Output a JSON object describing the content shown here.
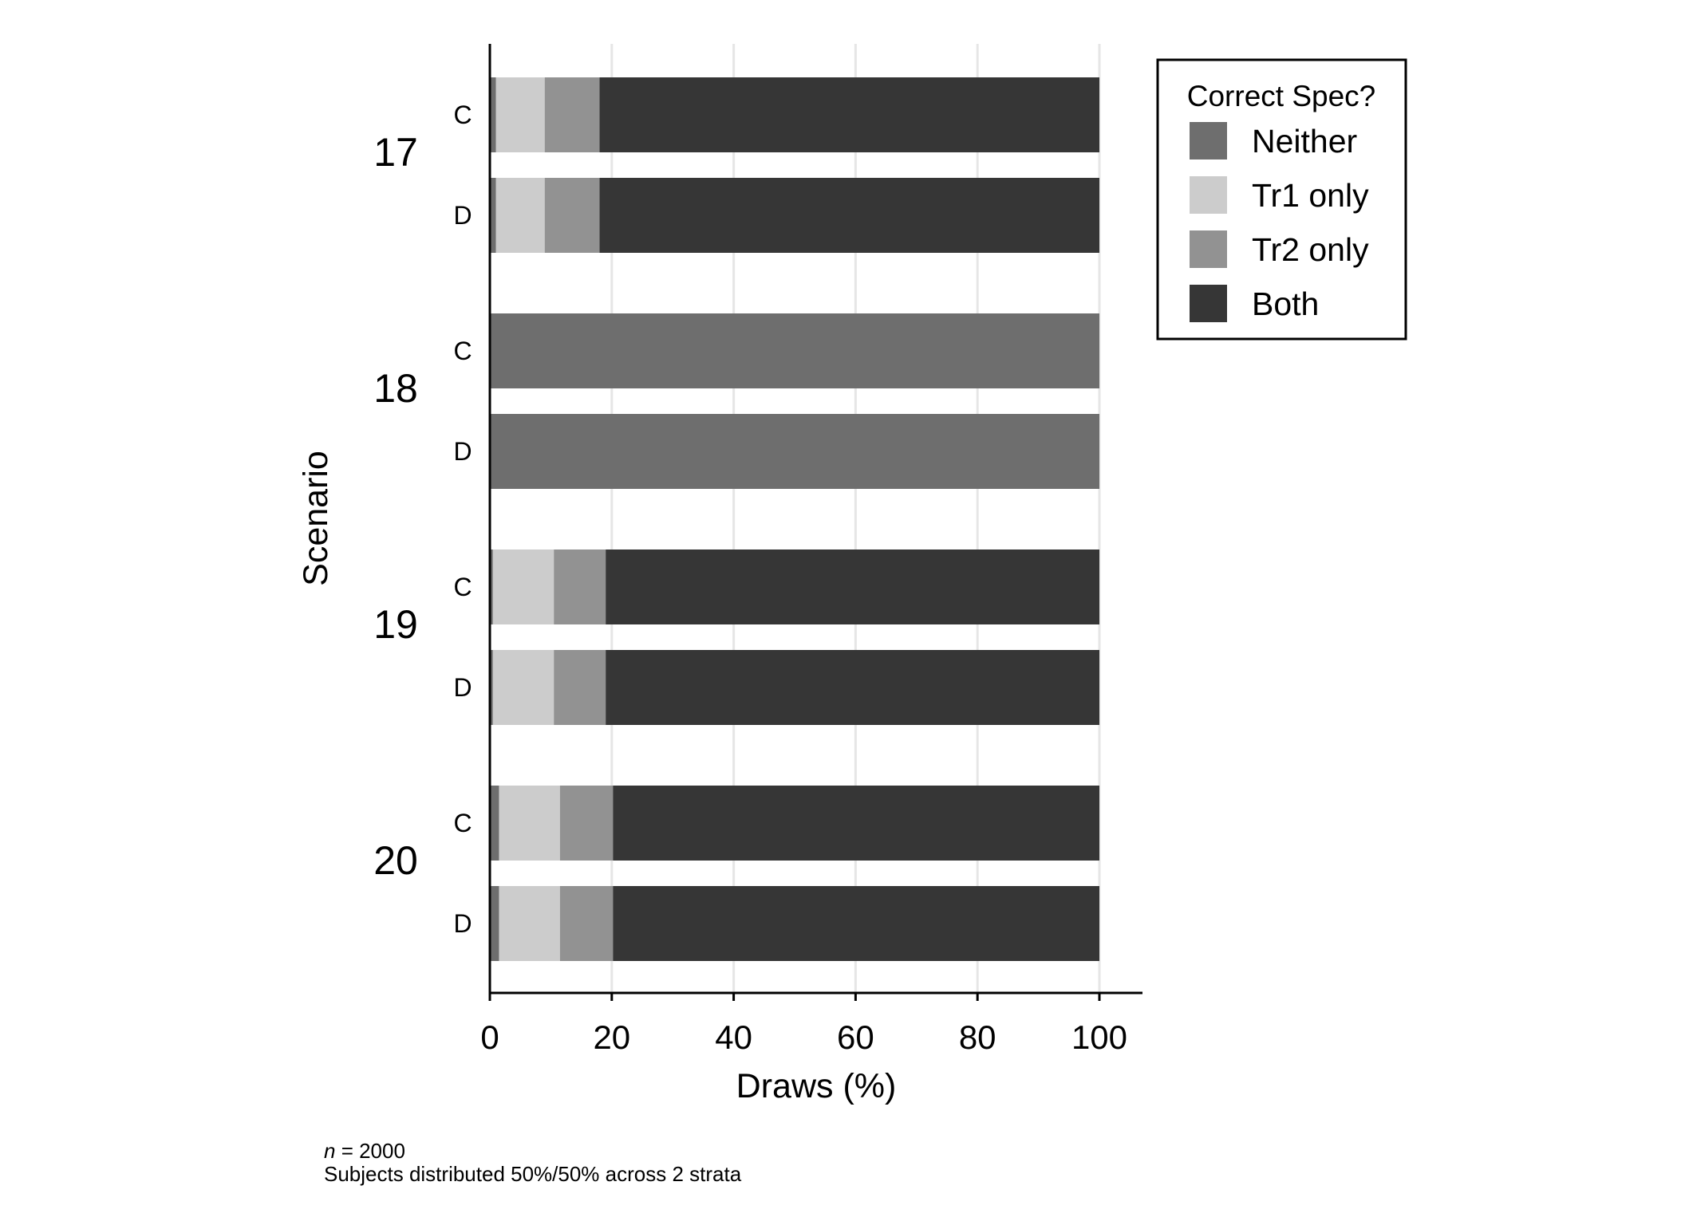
{
  "chart_data": {
    "type": "bar",
    "orientation": "horizontal",
    "stacked": true,
    "xlabel": "Draws (%)",
    "ylabel": "Scenario",
    "xlim": [
      0,
      100
    ],
    "xticks": [
      "0",
      "20",
      "40",
      "60",
      "80",
      "100"
    ],
    "grid": "vertical",
    "legend_placement": "top-right",
    "legend_title": "Correct Spec?",
    "series": [
      {
        "name": "Neither",
        "color": "#6e6e6e"
      },
      {
        "name": "Tr1 only",
        "color": "#cccccc"
      },
      {
        "name": "Tr2 only",
        "color": "#929292"
      },
      {
        "name": "Both",
        "color": "#363636"
      }
    ],
    "groups": [
      {
        "label": "17",
        "rows": [
          {
            "label": "C",
            "values": [
              1,
              8,
              9,
              82
            ]
          },
          {
            "label": "D",
            "values": [
              1,
              8,
              9,
              82
            ]
          }
        ]
      },
      {
        "label": "18",
        "rows": [
          {
            "label": "C",
            "values": [
              100,
              0,
              0,
              0
            ]
          },
          {
            "label": "D",
            "values": [
              100,
              0,
              0,
              0
            ]
          }
        ]
      },
      {
        "label": "19",
        "rows": [
          {
            "label": "C",
            "values": [
              0.5,
              10,
              8.5,
              81
            ]
          },
          {
            "label": "D",
            "values": [
              0.5,
              10,
              8.5,
              81
            ]
          }
        ]
      },
      {
        "label": "20",
        "rows": [
          {
            "label": "C",
            "values": [
              1.5,
              10,
              8.7,
              79.8
            ]
          },
          {
            "label": "D",
            "values": [
              1.5,
              10,
              8.7,
              79.8
            ]
          }
        ]
      }
    ]
  },
  "note": {
    "n_symbol": "n",
    "n_value": " = 2000",
    "line2": "Subjects distributed 50%/50% across 2 strata"
  }
}
